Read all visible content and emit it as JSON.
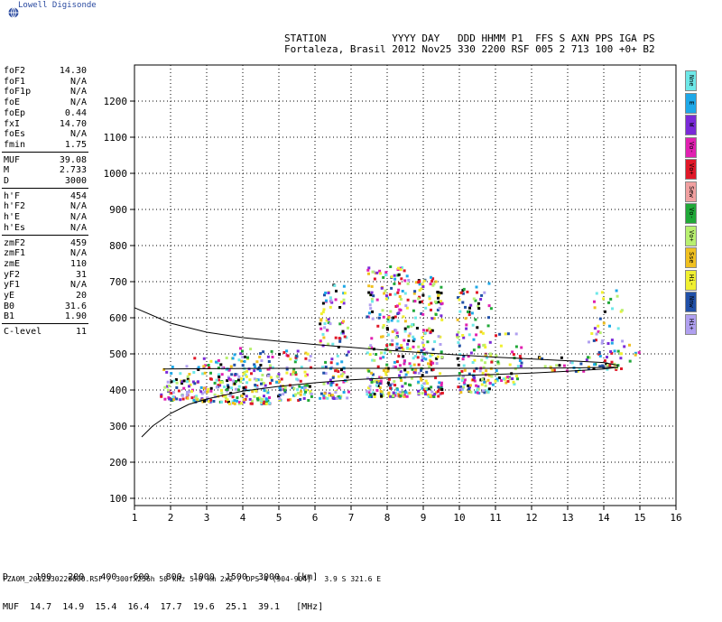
{
  "logo_text": "Lowell Digisonde",
  "header": {
    "labels": "STATION           YYYY DAY   DDD HHMM P1  FFS S AXN PPS IGA PS",
    "values": "Fortaleza, Brasil 2012 Nov25 330 2200 RSF 005 2 713 100 +0+ B2"
  },
  "params": [
    {
      "name": "foF2",
      "value": "14.30"
    },
    {
      "name": "foF1",
      "value": "N/A"
    },
    {
      "name": "foF1p",
      "value": "N/A"
    },
    {
      "name": "foE",
      "value": "N/A"
    },
    {
      "name": "foEp",
      "value": "0.44"
    },
    {
      "name": "fxI",
      "value": "14.70"
    },
    {
      "name": "foEs",
      "value": "N/A"
    },
    {
      "name": "fmin",
      "value": "1.75"
    },
    {
      "name": "MUF",
      "value": "39.08"
    },
    {
      "name": "M",
      "value": "2.733"
    },
    {
      "name": "D",
      "value": "3000"
    },
    {
      "name": "h'F",
      "value": "454"
    },
    {
      "name": "h'F2",
      "value": "N/A"
    },
    {
      "name": "h'E",
      "value": "N/A"
    },
    {
      "name": "h'Es",
      "value": "N/A"
    },
    {
      "name": "zmF2",
      "value": "459"
    },
    {
      "name": "zmF1",
      "value": "N/A"
    },
    {
      "name": "zmE",
      "value": "110"
    },
    {
      "name": "yF2",
      "value": "31"
    },
    {
      "name": "yF1",
      "value": "N/A"
    },
    {
      "name": "yE",
      "value": "20"
    },
    {
      "name": "B0",
      "value": "31.6"
    },
    {
      "name": "B1",
      "value": "1.90"
    },
    {
      "name": "C-level",
      "value": "11"
    }
  ],
  "legend": [
    {
      "label": "Nne",
      "color": "#6ee8e8"
    },
    {
      "label": "E",
      "color": "#1ea8e8"
    },
    {
      "label": "W",
      "color": "#7a2ad8"
    },
    {
      "label": "Vo-",
      "color": "#e020b0"
    },
    {
      "label": "Vo+",
      "color": "#e01828"
    },
    {
      "label": "Sew",
      "color": "#f0a0a0"
    },
    {
      "label": "Vo-",
      "color": "#20a838"
    },
    {
      "label": "Vo+",
      "color": "#b8f070"
    },
    {
      "label": "Sse",
      "color": "#f0c020"
    },
    {
      "label": "Hi-",
      "color": "#f0f030"
    },
    {
      "label": "Nnw",
      "color": "#2050a8"
    },
    {
      "label": "Hi+",
      "color": "#b0a0f0"
    }
  ],
  "muf_table": {
    "d_row": "D     100   200   400   600   800  1000  1500  3000   [km]",
    "muf_row": "MUF  14.7  14.9  15.4  16.4  17.7  19.6  25.1  39.1   [MHz]"
  },
  "footer": "FZA0M_2012330220000.RSF / 300fx256h 50 kHz 5.0 km 2x2 / DPS-4 (904-904)   3.9 S 321.6 E",
  "chart_data": {
    "type": "scatter",
    "title": "",
    "xlabel": "",
    "ylabel": "",
    "xlim": [
      1,
      16
    ],
    "ylim": [
      80,
      1300
    ],
    "x_ticks": [
      1,
      2,
      3,
      4,
      5,
      6,
      7,
      8,
      9,
      10,
      11,
      12,
      13,
      14,
      15,
      16
    ],
    "y_ticks": [
      100,
      200,
      300,
      400,
      500,
      600,
      700,
      800,
      900,
      1000,
      1100,
      1200
    ],
    "grid": true,
    "series": [
      {
        "kind": "line",
        "points": [
          [
            1.0,
            628
          ],
          [
            2,
            585
          ],
          [
            3,
            560
          ],
          [
            4,
            545
          ],
          [
            5,
            535
          ],
          [
            6,
            526
          ],
          [
            7,
            518
          ],
          [
            8,
            510
          ],
          [
            9,
            503
          ],
          [
            10,
            497
          ],
          [
            11,
            491
          ],
          [
            12,
            486
          ],
          [
            13,
            481
          ],
          [
            14,
            476
          ],
          [
            14.4,
            468
          ]
        ]
      },
      {
        "kind": "line",
        "points": [
          [
            1.2,
            270
          ],
          [
            1.5,
            300
          ],
          [
            2,
            335
          ],
          [
            2.5,
            360
          ],
          [
            3,
            375
          ],
          [
            4,
            397
          ],
          [
            5,
            410
          ],
          [
            6,
            420
          ],
          [
            7,
            428
          ],
          [
            8,
            433
          ],
          [
            9,
            437
          ],
          [
            10,
            440
          ],
          [
            11,
            443
          ],
          [
            12,
            447
          ],
          [
            13,
            452
          ],
          [
            14,
            458
          ],
          [
            14.4,
            463
          ]
        ]
      },
      {
        "kind": "line",
        "points": [
          [
            1.8,
            458
          ],
          [
            3,
            459
          ],
          [
            5,
            460
          ],
          [
            8,
            460
          ],
          [
            11,
            460
          ],
          [
            13,
            461
          ],
          [
            14.4,
            463
          ]
        ]
      }
    ],
    "echo_clusters": [
      {
        "x_range": [
          1.7,
          2.6
        ],
        "y_range": [
          375,
          470
        ],
        "density": 0.7
      },
      {
        "x_range": [
          2.6,
          3.6
        ],
        "y_range": [
          370,
          500
        ],
        "density": 0.8
      },
      {
        "x_range": [
          3.6,
          4.8
        ],
        "y_range": [
          365,
          520
        ],
        "density": 0.8
      },
      {
        "x_range": [
          4.9,
          5.9
        ],
        "y_range": [
          375,
          520
        ],
        "density": 0.6
      },
      {
        "x_range": [
          6.1,
          6.9
        ],
        "y_range": [
          380,
          700
        ],
        "density": 0.5
      },
      {
        "x_range": [
          7.4,
          8.6
        ],
        "y_range": [
          385,
          750
        ],
        "density": 0.6
      },
      {
        "x_range": [
          8.6,
          9.5
        ],
        "y_range": [
          385,
          720
        ],
        "density": 0.6
      },
      {
        "x_range": [
          9.9,
          10.9
        ],
        "y_range": [
          395,
          700
        ],
        "density": 0.5
      },
      {
        "x_range": [
          10.9,
          11.7
        ],
        "y_range": [
          420,
          560
        ],
        "density": 0.4
      },
      {
        "x_range": [
          12.1,
          12.7
        ],
        "y_range": [
          450,
          500
        ],
        "density": 0.3
      },
      {
        "x_range": [
          12.7,
          13.5
        ],
        "y_range": [
          455,
          500
        ],
        "density": 0.35
      },
      {
        "x_range": [
          13.5,
          14.5
        ],
        "y_range": [
          460,
          680
        ],
        "density": 0.3
      },
      {
        "x_range": [
          14.5,
          15.1
        ],
        "y_range": [
          470,
          540
        ],
        "density": 0.15
      }
    ],
    "echo_colors": [
      "#f0f030",
      "#f0c020",
      "#1ea8e8",
      "#6ee8e8",
      "#000000",
      "#b0a0f0",
      "#e01828",
      "#20a838",
      "#7a2ad8",
      "#e020b0",
      "#2050a8",
      "#b8f070"
    ]
  }
}
